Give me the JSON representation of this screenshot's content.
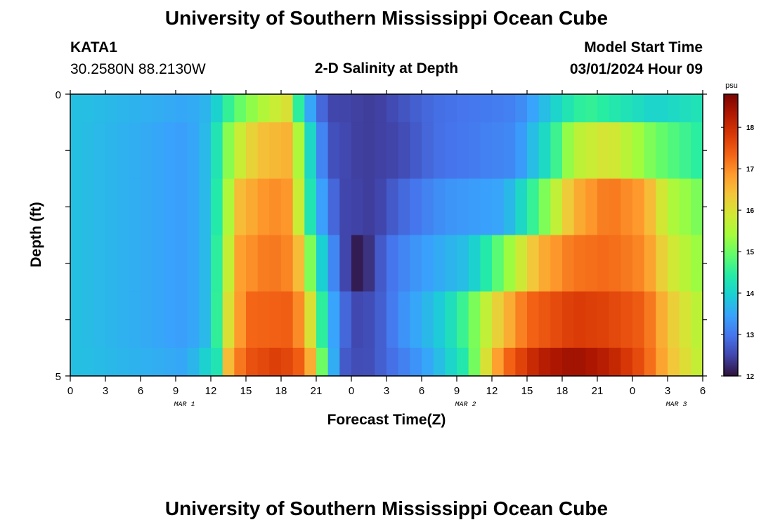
{
  "header": {
    "title": "University of Southern Mississippi Ocean Cube",
    "station": "KATA1",
    "coords": "30.2580N  88.2130W",
    "plot_title": "2-D Salinity at Depth",
    "model_start_label": "Model Start Time",
    "model_start_value": "03/01/2024 Hour 09"
  },
  "footer": {
    "title": "University of Southern Mississippi Ocean Cube"
  },
  "colors": {
    "colormap": [
      "#30123b",
      "#4145ab",
      "#4675ed",
      "#39a2fc",
      "#1bcfd4",
      "#24eca6",
      "#61fc6c",
      "#a4fc3b",
      "#d1e834",
      "#f3c63a",
      "#fe9b2d",
      "#f36315",
      "#d93806",
      "#b11901",
      "#7a0403"
    ]
  },
  "chart_data": {
    "type": "heatmap",
    "title": "2-D Salinity at Depth",
    "xlabel": "Forecast Time(Z)",
    "ylabel": "Depth (ft)",
    "ylim": [
      0,
      5
    ],
    "y_tick_labels": [
      "0",
      "5"
    ],
    "x_tick_labels": [
      "0",
      "3",
      "6",
      "9",
      "12",
      "15",
      "18",
      "21",
      "0",
      "3",
      "6",
      "9",
      "12",
      "15",
      "18",
      "21",
      "0",
      "3",
      "6"
    ],
    "date_labels": [
      {
        "label": "MAR 1",
        "hour": 13
      },
      {
        "label": "MAR 2",
        "hour": 45
      },
      {
        "label": "MAR 3",
        "hour": 69
      }
    ],
    "xlim_hours": [
      0,
      54
    ],
    "colorbar": {
      "unit": "psu",
      "vmin": 12,
      "vmax": 18.8,
      "tick_labels": [
        "12",
        "13",
        "14",
        "15",
        "16",
        "17",
        "18"
      ]
    },
    "depth_rows": [
      {
        "depth_range": [
          0,
          0.5
        ],
        "keyframes": [
          [
            0,
            13.8
          ],
          [
            10,
            13.5
          ],
          [
            12,
            13.7
          ],
          [
            13,
            14.3
          ],
          [
            14,
            14.8
          ],
          [
            17,
            15.7
          ],
          [
            18.5,
            16.0
          ],
          [
            19.5,
            14.5
          ],
          [
            21,
            13.0
          ],
          [
            22.5,
            12.5
          ],
          [
            26,
            12.4
          ],
          [
            28,
            12.6
          ],
          [
            31,
            12.9
          ],
          [
            38,
            13.1
          ],
          [
            40,
            13.6
          ],
          [
            42,
            14.2
          ],
          [
            44,
            14.6
          ],
          [
            47,
            14.3
          ],
          [
            50,
            14.0
          ],
          [
            54,
            14.3
          ]
        ]
      },
      {
        "depth_range": [
          0.5,
          1.5
        ],
        "keyframes": [
          [
            0,
            13.8
          ],
          [
            10,
            13.4
          ],
          [
            12,
            13.8
          ],
          [
            13,
            14.8
          ],
          [
            14,
            15.6
          ],
          [
            16,
            16.4
          ],
          [
            18.5,
            16.6
          ],
          [
            19.5,
            15.5
          ],
          [
            21,
            13.4
          ],
          [
            22.5,
            12.6
          ],
          [
            25,
            12.4
          ],
          [
            28,
            12.5
          ],
          [
            31,
            12.9
          ],
          [
            38,
            13.2
          ],
          [
            41,
            14.3
          ],
          [
            43,
            15.6
          ],
          [
            46,
            16.0
          ],
          [
            48,
            15.5
          ],
          [
            50,
            15.0
          ],
          [
            54,
            14.4
          ]
        ]
      },
      {
        "depth_range": [
          1.5,
          2.5
        ],
        "keyframes": [
          [
            0,
            13.8
          ],
          [
            10,
            13.4
          ],
          [
            12,
            13.8
          ],
          [
            13,
            15.0
          ],
          [
            14.5,
            16.5
          ],
          [
            17,
            17.0
          ],
          [
            18.5,
            16.9
          ],
          [
            19.5,
            15.8
          ],
          [
            20.5,
            14.3
          ],
          [
            22,
            13.0
          ],
          [
            23.5,
            12.5
          ],
          [
            26,
            12.4
          ],
          [
            28,
            12.8
          ],
          [
            32,
            13.3
          ],
          [
            37,
            13.5
          ],
          [
            39,
            14.3
          ],
          [
            41,
            15.4
          ],
          [
            43,
            16.6
          ],
          [
            46,
            17.2
          ],
          [
            49,
            16.8
          ],
          [
            51,
            15.6
          ],
          [
            54,
            15.0
          ]
        ]
      },
      {
        "depth_range": [
          2.5,
          3.5
        ],
        "keyframes": [
          [
            0,
            13.8
          ],
          [
            10,
            13.4
          ],
          [
            12,
            13.8
          ],
          [
            13,
            15.2
          ],
          [
            14.5,
            16.8
          ],
          [
            17,
            17.2
          ],
          [
            19,
            17.0
          ],
          [
            20,
            16.0
          ],
          [
            20.8,
            14.6
          ],
          [
            22,
            13.5
          ],
          [
            23.5,
            12.5
          ],
          [
            24.5,
            12.1
          ],
          [
            25.5,
            12.3
          ],
          [
            27,
            12.9
          ],
          [
            30,
            13.4
          ],
          [
            34,
            13.8
          ],
          [
            36,
            14.6
          ],
          [
            38,
            15.6
          ],
          [
            40,
            16.6
          ],
          [
            43,
            17.2
          ],
          [
            46,
            17.3
          ],
          [
            49,
            17.0
          ],
          [
            51,
            16.0
          ],
          [
            54,
            15.2
          ]
        ]
      },
      {
        "depth_range": [
          3.5,
          4.5
        ],
        "keyframes": [
          [
            0,
            13.8
          ],
          [
            10,
            13.4
          ],
          [
            12,
            13.8
          ],
          [
            13.5,
            16.0
          ],
          [
            15,
            17.3
          ],
          [
            18.5,
            17.4
          ],
          [
            20,
            16.8
          ],
          [
            21,
            15.2
          ],
          [
            22,
            13.8
          ],
          [
            24,
            12.5
          ],
          [
            26,
            12.6
          ],
          [
            28,
            13.2
          ],
          [
            32,
            14.0
          ],
          [
            34,
            14.8
          ],
          [
            36,
            16.0
          ],
          [
            39,
            17.3
          ],
          [
            43,
            17.8
          ],
          [
            46,
            17.7
          ],
          [
            49,
            17.4
          ],
          [
            51,
            16.4
          ],
          [
            54,
            15.5
          ]
        ]
      },
      {
        "depth_range": [
          4.5,
          5.0
        ],
        "keyframes": [
          [
            0,
            13.8
          ],
          [
            10,
            13.5
          ],
          [
            12.5,
            14.3
          ],
          [
            13.5,
            16.5
          ],
          [
            15,
            17.5
          ],
          [
            18,
            17.8
          ],
          [
            20,
            17.3
          ],
          [
            21,
            16.0
          ],
          [
            22,
            14.0
          ],
          [
            23.5,
            12.7
          ],
          [
            25,
            12.5
          ],
          [
            28,
            13.0
          ],
          [
            31,
            13.6
          ],
          [
            34,
            14.5
          ],
          [
            35,
            15.6
          ],
          [
            37,
            17.2
          ],
          [
            40,
            18.2
          ],
          [
            43,
            18.5
          ],
          [
            46,
            18.2
          ],
          [
            49,
            17.5
          ],
          [
            51,
            16.5
          ],
          [
            54,
            15.6
          ]
        ]
      }
    ]
  }
}
